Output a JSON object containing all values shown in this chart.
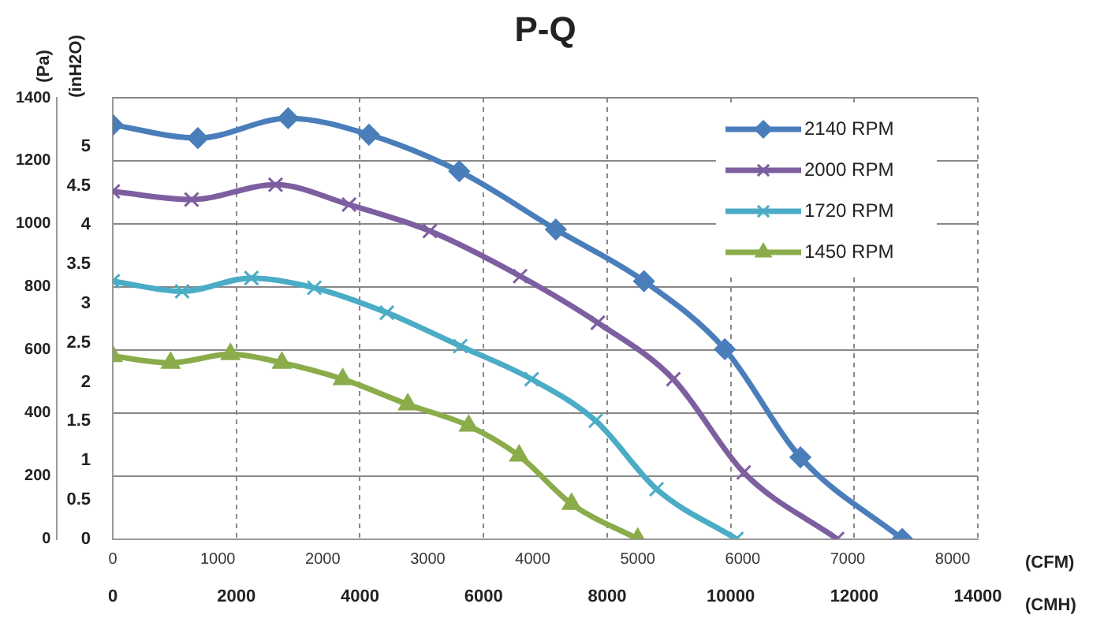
{
  "chart_data": {
    "type": "line",
    "title": "P-Q",
    "xlabel": "(CFM)",
    "x2label": "(CMH)",
    "ylabel": "(Pa)",
    "y2label": "(inH2O)",
    "xlim": [
      0,
      8240
    ],
    "xticks": [
      0,
      1000,
      2000,
      3000,
      4000,
      5000,
      6000,
      7000,
      8000
    ],
    "x2lim": [
      0,
      14000
    ],
    "x2ticks": [
      0,
      2000,
      4000,
      6000,
      8000,
      10000,
      12000,
      14000
    ],
    "ylim": [
      0,
      1400
    ],
    "yticks": [
      0,
      200,
      400,
      600,
      800,
      1000,
      1200,
      1400
    ],
    "y2lim": [
      0,
      5.62
    ],
    "y2ticks": [
      0,
      0.5,
      1,
      1.5,
      2,
      2.5,
      3,
      3.5,
      4,
      4.5,
      5
    ],
    "grid": true,
    "legend": "top right",
    "line_style": "solid",
    "series": [
      {
        "name": "2140 RPM",
        "color": "#4a7ebb",
        "marker": "diamond",
        "x": [
          0,
          810,
          1670,
          2440,
          3300,
          4220,
          5060,
          5830,
          6550,
          7520
        ],
        "values": [
          1314,
          1272,
          1335,
          1283,
          1167,
          982,
          818,
          602,
          259,
          0
        ]
      },
      {
        "name": "2000 RPM",
        "color": "#7d5fa0",
        "marker": "cross",
        "x": [
          0,
          750,
          1550,
          2250,
          3020,
          3880,
          4620,
          5340,
          6010,
          6900
        ],
        "values": [
          1103,
          1077,
          1124,
          1061,
          977,
          834,
          686,
          507,
          211,
          0
        ]
      },
      {
        "name": "1720 RPM",
        "color": "#4bacc6",
        "marker": "cross",
        "x": [
          0,
          660,
          1320,
          1920,
          2610,
          3310,
          3990,
          4600,
          5180,
          5940
        ],
        "values": [
          818,
          786,
          828,
          797,
          718,
          612,
          507,
          375,
          158,
          0
        ]
      },
      {
        "name": "1450 RPM",
        "color": "#8aac4a",
        "marker": "triangle",
        "x": [
          0,
          550,
          1120,
          1610,
          2190,
          2810,
          3390,
          3870,
          4370,
          5000
        ],
        "values": [
          580,
          559,
          586,
          559,
          507,
          427,
          359,
          264,
          111,
          0
        ]
      }
    ]
  }
}
